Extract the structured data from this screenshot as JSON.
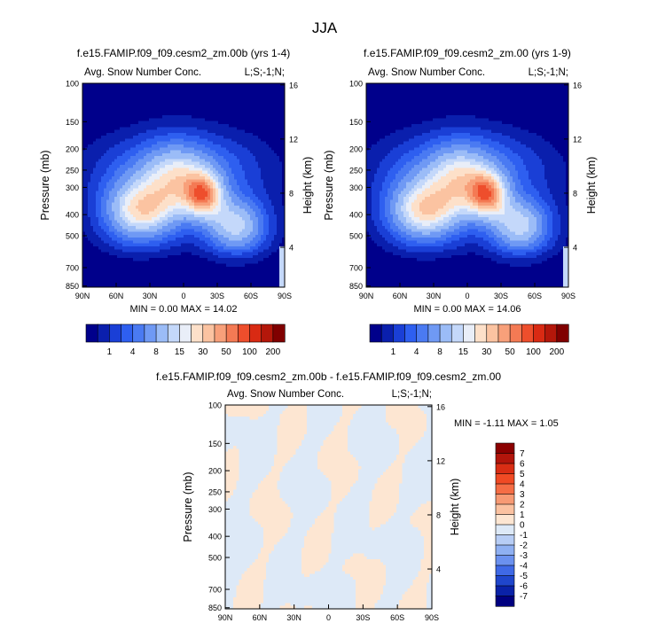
{
  "figure": {
    "title": "JJA"
  },
  "chart_data": [
    {
      "type": "heatmap",
      "title": "f.e15.FAMIP.f09_f09.cesm2_zm.00b (yrs 1-4)",
      "left_label": "Avg. Snow Number Conc.",
      "right_label": "L;S;-1;N;",
      "ylabel": "Pressure (mb)",
      "ylabel_right": "Height (km)",
      "x_ticks": [
        "90N",
        "60N",
        "30N",
        "0",
        "30S",
        "60S",
        "90S"
      ],
      "y_ticks": [
        "100",
        "150",
        "200",
        "250",
        "300",
        "400",
        "500",
        "700",
        "850"
      ],
      "y2_ticks": [
        "16",
        "12",
        "8",
        "4"
      ],
      "stats": "MIN =  0.00  MAX = 14.02",
      "min": 0.0,
      "max": 14.02,
      "field": "snow_a"
    },
    {
      "type": "heatmap",
      "title": "f.e15.FAMIP.f09_f09.cesm2_zm.00 (yrs 1-9)",
      "left_label": "Avg. Snow Number Conc.",
      "right_label": "L;S;-1;N;",
      "ylabel": "Pressure (mb)",
      "ylabel_right": "Height (km)",
      "x_ticks": [
        "90N",
        "60N",
        "30N",
        "0",
        "30S",
        "60S",
        "90S"
      ],
      "y_ticks": [
        "100",
        "150",
        "200",
        "250",
        "300",
        "400",
        "500",
        "700",
        "850"
      ],
      "y2_ticks": [
        "16",
        "12",
        "8",
        "4"
      ],
      "stats": "MIN =  0.00  MAX = 14.06",
      "min": 0.0,
      "max": 14.06,
      "field": "snow_b"
    },
    {
      "type": "heatmap",
      "title": "f.e15.FAMIP.f09_f09.cesm2_zm.00b - f.e15.FAMIP.f09_f09.cesm2_zm.00",
      "left_label": "Avg. Snow Number Conc.",
      "right_label": "L;S;-1;N;",
      "ylabel": "Pressure (mb)",
      "ylabel_right": "Height (km)",
      "x_ticks": [
        "90N",
        "60N",
        "30N",
        "0",
        "30S",
        "60S",
        "90S"
      ],
      "y_ticks": [
        "100",
        "150",
        "200",
        "250",
        "300",
        "400",
        "500",
        "700",
        "850"
      ],
      "y2_ticks": [
        "16",
        "12",
        "8",
        "4"
      ],
      "stats": "MIN =  -1.11  MAX =  1.05",
      "min": -1.11,
      "max": 1.05,
      "field": "diff"
    }
  ],
  "colorbar_top": {
    "labels": [
      "1",
      "4",
      "8",
      "15",
      "30",
      "50",
      "100",
      "200"
    ],
    "colors": [
      "#00008b",
      "#0a1fad",
      "#1a3fd6",
      "#2e5ff0",
      "#4a7af2",
      "#6f99f4",
      "#9bbcf7",
      "#c4d8fa",
      "#e9eef8",
      "#fde0c9",
      "#fbc3a1",
      "#f8a07a",
      "#f47a54",
      "#ee4e2c",
      "#d92a13",
      "#b4170a",
      "#800000"
    ]
  },
  "colorbar_diff": {
    "labels": [
      "7",
      "6",
      "5",
      "4",
      "3",
      "2",
      "1",
      "0",
      "-1",
      "-2",
      "-3",
      "-4",
      "-5",
      "-6",
      "-7"
    ],
    "colors": [
      "#8b0000",
      "#b2150b",
      "#d92d14",
      "#f04a24",
      "#f56d45",
      "#f79a74",
      "#fbc2a1",
      "#fde6d2",
      "#dde9f7",
      "#b7cdf5",
      "#8fb0f2",
      "#6b91ef",
      "#3f69e6",
      "#1f46cc",
      "#0a22a8",
      "#000080"
    ]
  }
}
